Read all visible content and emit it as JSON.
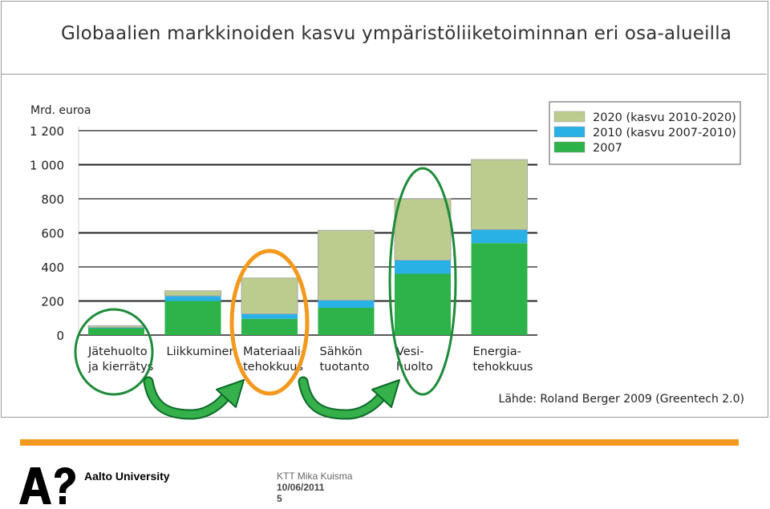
{
  "slide": {
    "title": "Globaalien markkinoiden kasvu ympäristöliiketoiminnan eri osa-alueilla",
    "university": "Aalto University",
    "footer_author": "KTT Mika Kuisma",
    "footer_date": "10/06/2011",
    "footer_page": "5"
  },
  "colors": {
    "orange": "#f39a1e",
    "green_2007": "#2db34a",
    "blue_2010": "#29b0e4",
    "lightgreen_2020": "#bccc8e",
    "circle_green": "#1e8a3a"
  },
  "chart_data": {
    "type": "bar",
    "stacked": true,
    "ylabel": "Mrd. euroa",
    "ylim": [
      0,
      1200
    ],
    "yticks": [
      0,
      200,
      400,
      600,
      800,
      1000,
      1200
    ],
    "ytick_labels": [
      "0",
      "200",
      "400",
      "600",
      "800",
      "1 000",
      "1 200"
    ],
    "grid": true,
    "legend_position": "top-right",
    "categories": [
      [
        "Jätehuolto",
        "ja kierrätys"
      ],
      [
        "Liikkuminen"
      ],
      [
        "Materiaali-",
        "tehokkuus"
      ],
      [
        "Sähkön",
        "tuotanto"
      ],
      [
        "Vesi-",
        "huolto"
      ],
      [
        "Energia-",
        "tehokkuus"
      ]
    ],
    "series": [
      {
        "name": "2007",
        "color": "#2db34a",
        "values": [
          40,
          200,
          95,
          160,
          360,
          540
        ]
      },
      {
        "name": "2010 (kasvu 2007-2010)",
        "color": "#29b0e4",
        "values": [
          5,
          30,
          30,
          45,
          80,
          80
        ]
      },
      {
        "name": "2020 (kasvu 2010-2020)",
        "color": "#bccc8e",
        "values": [
          10,
          30,
          210,
          410,
          360,
          410
        ]
      }
    ],
    "source": "Lähde: Roland Berger 2009 (Greentech 2.0)"
  }
}
